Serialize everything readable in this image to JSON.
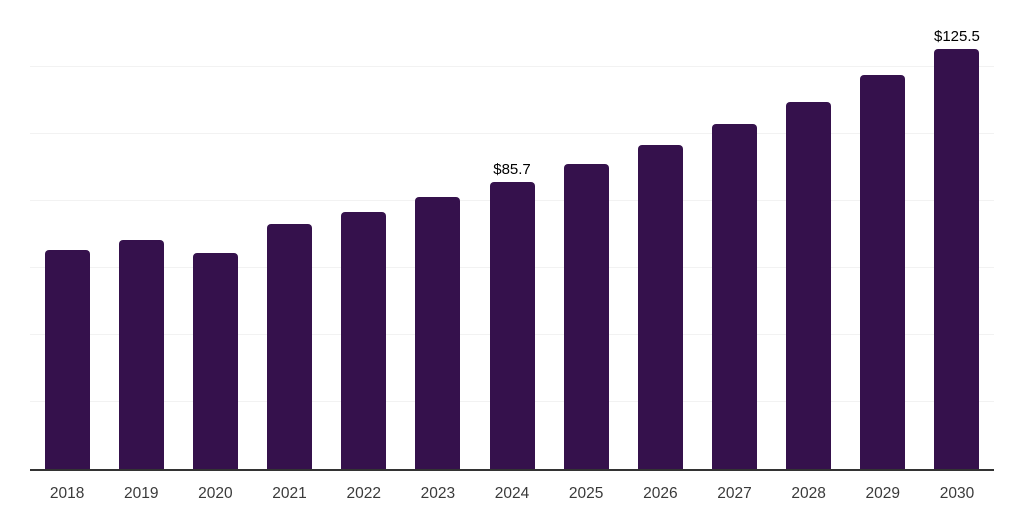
{
  "chart_data": {
    "type": "bar",
    "title": "",
    "xlabel": "",
    "ylabel": "",
    "categories": [
      "2018",
      "2019",
      "2020",
      "2021",
      "2022",
      "2023",
      "2024",
      "2025",
      "2026",
      "2027",
      "2028",
      "2029",
      "2030"
    ],
    "values": [
      65.4,
      68.5,
      64.5,
      73.2,
      76.7,
      81.2,
      85.7,
      91.1,
      96.6,
      103.0,
      109.7,
      117.5,
      125.5
    ],
    "data_labels": {
      "2024": "$85.7",
      "2030": "$125.5"
    },
    "ylim": [
      0,
      140
    ],
    "gridline_values": [
      20,
      40,
      60,
      80,
      100,
      120,
      140
    ],
    "grid": "horizontal-only",
    "legend": "none",
    "y_axis_labels": "none",
    "colors": {
      "bar": "#35114C",
      "gridline": "#F2F2F2",
      "axis_line": "#333333",
      "tick_label": "#3A3A3A",
      "data_label": "#000000",
      "background": "#FFFFFF"
    }
  }
}
